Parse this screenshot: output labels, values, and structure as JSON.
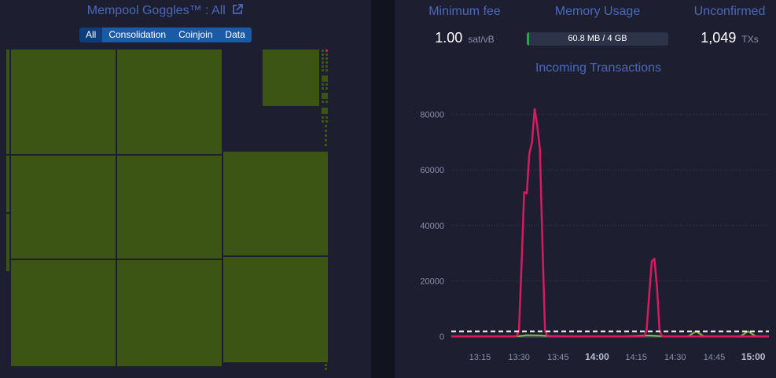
{
  "goggles": {
    "title": "Mempool Goggles™ : All",
    "filters": [
      {
        "label": "All",
        "active": true
      },
      {
        "label": "Consolidation",
        "active": false
      },
      {
        "label": "Coinjoin",
        "active": false
      },
      {
        "label": "Data",
        "active": false
      }
    ]
  },
  "stats": {
    "min_fee_label": "Minimum fee",
    "min_fee_value": "1.00",
    "min_fee_unit": "sat/vB",
    "memory_label": "Memory Usage",
    "memory_text": "60.8 MB / 4 GB",
    "memory_fraction": 0.015,
    "unconfirmed_label": "Unconfirmed",
    "unconfirmed_value": "1,049",
    "unconfirmed_unit": "TXs"
  },
  "colors": {
    "accent": "#4a68b9",
    "block_green": "#3c5514",
    "series_pink": "#d81b60",
    "series_green": "#7cb342",
    "memory_fill": "#28a745"
  },
  "chart_data": {
    "type": "line",
    "title": "Incoming Transactions",
    "xlabel": "",
    "ylabel": "",
    "ylim": [
      0,
      85000
    ],
    "y_ticks": [
      "0",
      "20000",
      "40000",
      "60000",
      "80000"
    ],
    "x_ticks": [
      "13:15",
      "13:30",
      "13:45",
      "14:00",
      "14:15",
      "14:30",
      "14:45",
      "15:00"
    ],
    "bold_x_ticks": [
      "14:00",
      "15:00"
    ],
    "x_time_range": [
      "13:04",
      "15:06"
    ],
    "grid": true,
    "threshold": 1800,
    "series": [
      {
        "values_desc": "pink",
        "color": "#d81b60",
        "x": [
          "13:04",
          "13:26",
          "13:29",
          "13:30",
          "13:31",
          "13:32",
          "13:33",
          "13:34",
          "13:35",
          "13:36",
          "13:37",
          "13:38",
          "13:39",
          "13:40",
          "13:41",
          "13:42",
          "13:43",
          "13:44",
          "13:45",
          "14:00",
          "14:14",
          "14:18",
          "14:19",
          "14:20",
          "14:21",
          "14:22",
          "14:23",
          "14:24",
          "14:25",
          "14:30",
          "14:45",
          "15:00",
          "15:06"
        ],
        "values": [
          0,
          0,
          0,
          2000,
          26000,
          52000,
          51500,
          66000,
          70000,
          82000,
          76000,
          68000,
          34000,
          2000,
          0,
          0,
          0,
          0,
          0,
          0,
          0,
          0,
          2000,
          15000,
          27000,
          28000,
          18000,
          2000,
          0,
          0,
          0,
          0,
          0
        ]
      },
      {
        "values_desc": "green",
        "color": "#7cb342",
        "x": [
          "13:04",
          "13:29",
          "13:33",
          "13:38",
          "13:42",
          "13:50",
          "14:00",
          "14:10",
          "14:20",
          "14:26",
          "14:30",
          "14:35",
          "14:38",
          "14:41",
          "14:45",
          "14:50",
          "14:55",
          "14:58",
          "15:01",
          "15:06"
        ],
        "values": [
          0,
          0,
          400,
          300,
          100,
          0,
          0,
          0,
          300,
          0,
          0,
          0,
          1800,
          0,
          0,
          0,
          0,
          1800,
          0,
          0
        ]
      }
    ]
  }
}
